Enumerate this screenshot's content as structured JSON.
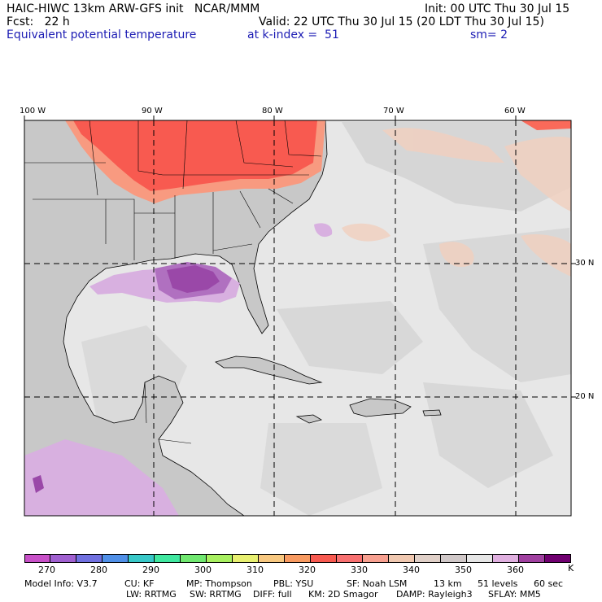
{
  "header": {
    "line1_left": "HAIC-HIWC 13km ARW-GFS init   NCAR/MMM",
    "line1_right": "Init: 00 UTC Thu 30 Jul 15",
    "line2_left": "Fcst:   22 h",
    "line2_right": "Valid: 22 UTC Thu 30 Jul 15 (20 LDT Thu 30 Jul 15)",
    "field_name": "Equivalent potential temperature",
    "level": "at k-index =  51",
    "smoothing": "sm= 2"
  },
  "map": {
    "lon_labels": [
      "100 W",
      "90 W",
      "80 W",
      "70 W",
      "60 W"
    ],
    "lat_labels": [
      "30 N",
      "20 N"
    ],
    "colors": {
      "ocean": "#e7e7e7",
      "land": "#c8c8c8",
      "hot": "#f85a50",
      "warm": "#f5a088",
      "pink": "#f0d0c0",
      "purple": "#9a48a8",
      "lilac": "#d8b0e0"
    }
  },
  "colorbar": {
    "labels": [
      "270",
      "280",
      "290",
      "300",
      "310",
      "320",
      "330",
      "340",
      "350",
      "360"
    ],
    "unit": "K",
    "colors": [
      "#c850c8",
      "#a060d0",
      "#7070e0",
      "#5090e8",
      "#38c8c8",
      "#40e8a0",
      "#70e870",
      "#a8f060",
      "#e8f070",
      "#f8c880",
      "#f89a60",
      "#f85a50",
      "#f87070",
      "#f8a090",
      "#f0c8b0",
      "#e0d0c8",
      "#d0c8c8",
      "#e6e6e6",
      "#e0b0e0",
      "#a040a0",
      "#700070"
    ]
  },
  "footer": {
    "line1": [
      "Model Info: V3.7",
      "CU: KF",
      "MP: Thompson",
      "PBL: YSU",
      "SF: Noah LSM",
      "13 km",
      "51 levels",
      "60 sec"
    ],
    "line2": [
      "LW: RRTMG",
      "SW: RRTMG",
      "DIFF: full",
      "KM: 2D Smagor",
      "DAMP: Rayleigh3",
      "SFLAY: MM5"
    ]
  }
}
